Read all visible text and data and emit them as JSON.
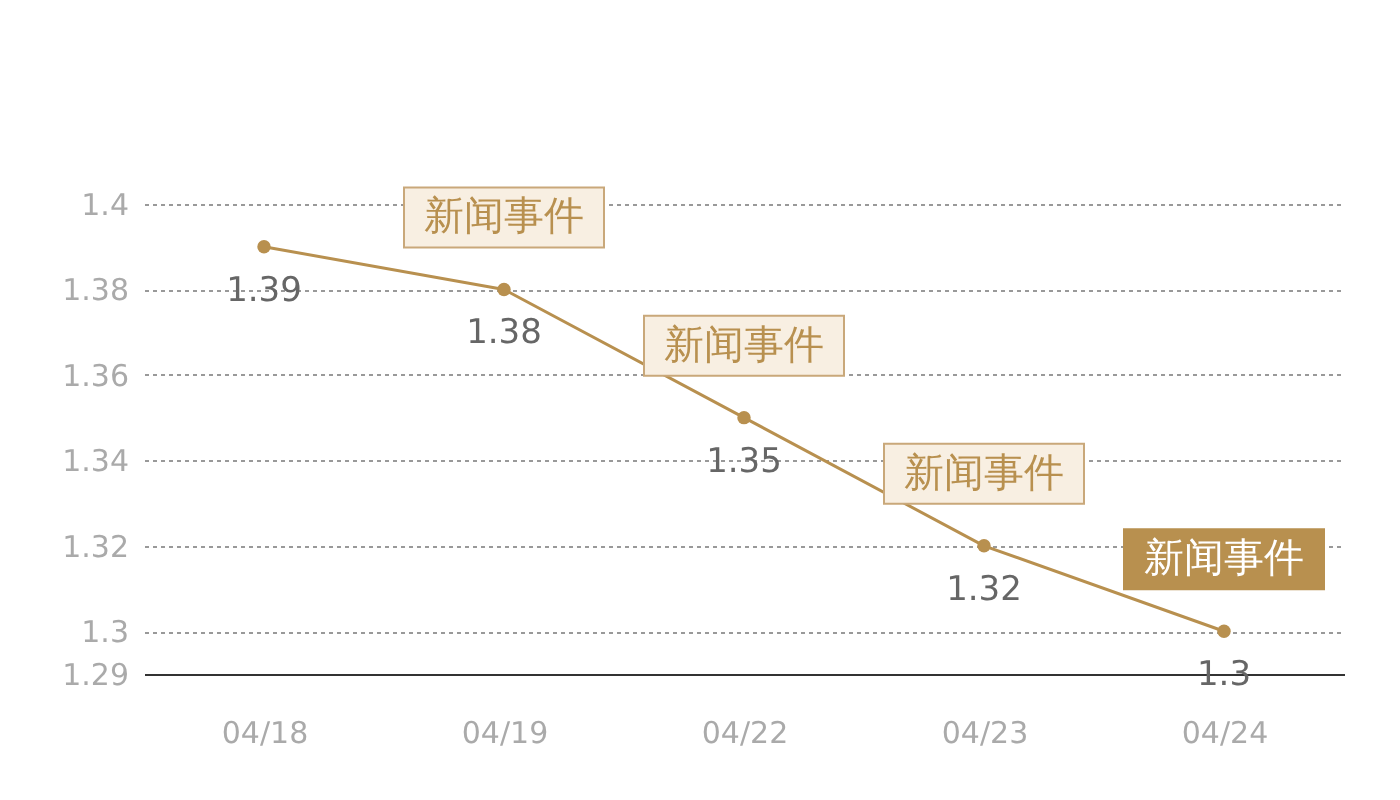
{
  "chart_data": {
    "type": "line",
    "categories": [
      "04/18",
      "04/19",
      "04/22",
      "04/23",
      "04/24"
    ],
    "series": [
      {
        "color": "#b8904f",
        "values": [
          1.39,
          1.38,
          1.35,
          1.32,
          1.3
        ]
      }
    ],
    "ylim": [
      1.29,
      1.4
    ],
    "yticks": [
      1.29,
      1.3,
      1.32,
      1.34,
      1.36,
      1.38,
      1.4
    ],
    "grid": "y",
    "marker": "circle",
    "line_style": "solid",
    "data_labels": true,
    "annotations": [
      {
        "text": "新闻事件",
        "x": "04/19",
        "y": 1.38
      },
      {
        "text": "新闻事件",
        "x": "04/22",
        "y": 1.35
      },
      {
        "text": "新闻事件",
        "x": "04/23",
        "y": 1.32
      },
      {
        "text": "新闻事件",
        "x": "04/24",
        "y": 1.3
      }
    ]
  }
}
